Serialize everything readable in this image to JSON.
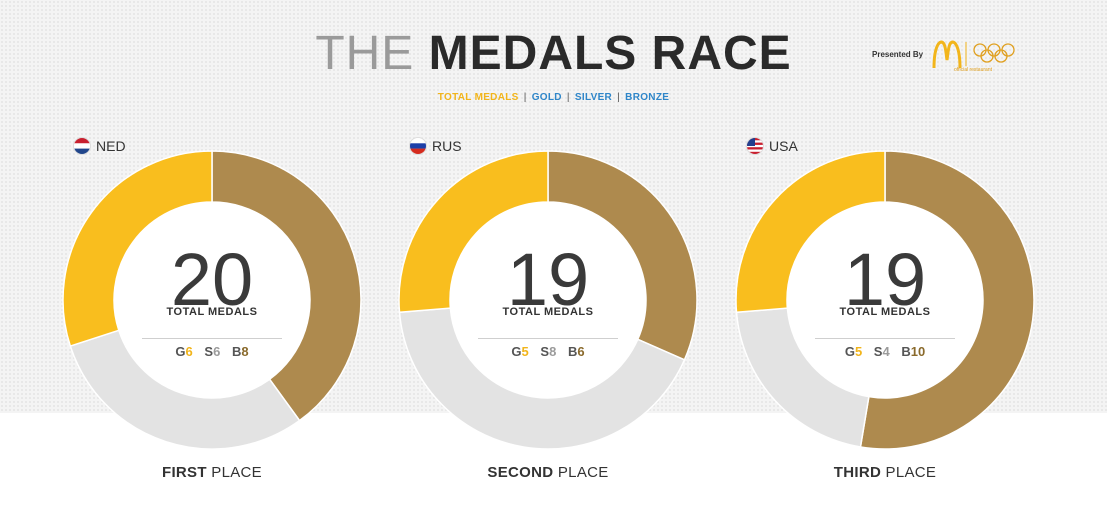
{
  "header": {
    "title_light": "THE",
    "title_bold": "MEDALS RACE",
    "sponsor_label": "Presented By",
    "sponsor_sub": "official restaurant"
  },
  "legend": {
    "total": "TOTAL MEDALS",
    "gold": "GOLD",
    "silver": "SILVER",
    "bronze": "BRONZE",
    "separator": "|"
  },
  "colors": {
    "gold": "#f9be1e",
    "silver": "#e3e3e3",
    "bronze": "#ae8a4e",
    "accent_blue": "#2f86c9",
    "accent_yellow": "#f2b51b"
  },
  "labels": {
    "total_medals": "TOTAL MEDALS",
    "place_suffix": "PLACE",
    "g": "G",
    "s": "S",
    "b": "B"
  },
  "chart_data": [
    {
      "type": "pie",
      "country": "NED",
      "flag": "netherlands-flag",
      "total": 20,
      "place": "FIRST",
      "categories": [
        "Bronze",
        "Silver",
        "Gold"
      ],
      "values": [
        8,
        6,
        6
      ]
    },
    {
      "type": "pie",
      "country": "RUS",
      "flag": "russia-flag",
      "total": 19,
      "place": "SECOND",
      "categories": [
        "Bronze",
        "Silver",
        "Gold"
      ],
      "values": [
        6,
        8,
        5
      ]
    },
    {
      "type": "pie",
      "country": "USA",
      "flag": "usa-flag",
      "total": 19,
      "place": "THIRD",
      "categories": [
        "Bronze",
        "Silver",
        "Gold"
      ],
      "values": [
        10,
        4,
        5
      ]
    }
  ]
}
